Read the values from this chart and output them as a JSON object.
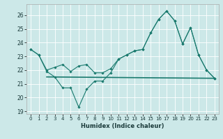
{
  "xlabel": "Humidex (Indice chaleur)",
  "background_color": "#cce8e8",
  "grid_color": "#ffffff",
  "line_color": "#1a7a6e",
  "xlim": [
    -0.5,
    23.5
  ],
  "ylim": [
    18.8,
    26.8
  ],
  "yticks": [
    19,
    20,
    21,
    22,
    23,
    24,
    25,
    26
  ],
  "xticks": [
    0,
    1,
    2,
    3,
    4,
    5,
    6,
    7,
    8,
    9,
    10,
    11,
    12,
    13,
    14,
    15,
    16,
    17,
    18,
    19,
    20,
    21,
    22,
    23
  ],
  "line1_x": [
    0,
    1,
    2,
    3,
    4,
    5,
    6,
    7,
    8,
    9,
    10,
    11,
    12,
    13,
    14,
    15,
    16,
    17,
    18,
    19,
    20,
    21,
    22,
    23
  ],
  "line1_y": [
    23.5,
    23.1,
    21.9,
    21.5,
    20.7,
    20.7,
    19.3,
    20.6,
    21.2,
    21.2,
    21.8,
    22.8,
    23.1,
    23.4,
    23.5,
    24.7,
    25.7,
    26.3,
    25.6,
    23.9,
    25.1,
    23.1,
    22.0,
    21.4
  ],
  "line2_x": [
    0,
    1,
    2,
    3,
    4,
    5,
    6,
    7,
    8,
    9,
    10,
    11,
    12,
    13,
    14,
    15,
    16,
    17,
    18,
    19,
    20,
    21,
    22,
    23
  ],
  "line2_y": [
    23.5,
    23.1,
    22.0,
    22.2,
    22.4,
    21.9,
    22.3,
    22.4,
    21.8,
    21.8,
    22.1,
    22.8,
    23.1,
    23.4,
    23.5,
    24.7,
    25.7,
    26.3,
    25.6,
    23.9,
    25.1,
    23.1,
    22.0,
    21.4
  ],
  "line3_x": [
    2,
    23
  ],
  "line3_y": [
    21.5,
    21.4
  ]
}
